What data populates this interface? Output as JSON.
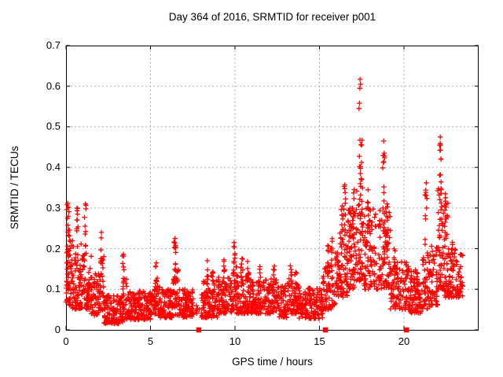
{
  "chart_data": {
    "type": "scatter",
    "title": "Day 364 of 2016, SRMTID for receiver p001",
    "xlabel": "GPS time / hours",
    "ylabel": "SRMTID / TECUs",
    "xlim": [
      0,
      24.42
    ],
    "ylim": [
      0,
      0.7
    ],
    "xticks": [
      0,
      5,
      10,
      15,
      20
    ],
    "yticks": [
      0,
      0.1,
      0.2,
      0.3,
      0.4,
      0.5,
      0.6,
      0.7
    ],
    "grid": true,
    "legend": "none",
    "marker": "plus",
    "marker_color": "#ff0000",
    "border_color": "#000000",
    "grid_color": "#b0b0b0",
    "zero_value_marker_hours": [
      7.86,
      15.35,
      20.15
    ],
    "peak_points": [
      [
        17.4,
        0.617
      ],
      [
        17.43,
        0.605
      ],
      [
        17.39,
        0.595
      ],
      [
        17.37,
        0.558
      ],
      [
        17.34,
        0.545
      ],
      [
        17.52,
        0.467
      ],
      [
        17.5,
        0.455
      ],
      [
        17.49,
        0.412
      ],
      [
        17.46,
        0.372
      ],
      [
        18.8,
        0.465
      ],
      [
        18.83,
        0.435
      ],
      [
        18.78,
        0.412
      ],
      [
        18.81,
        0.352
      ],
      [
        18.76,
        0.3
      ],
      [
        22.15,
        0.475
      ],
      [
        22.17,
        0.455
      ],
      [
        22.13,
        0.442
      ],
      [
        22.19,
        0.421
      ],
      [
        22.16,
        0.382
      ],
      [
        21.32,
        0.362
      ],
      [
        21.29,
        0.344
      ],
      [
        21.34,
        0.3
      ],
      [
        16.5,
        0.357
      ],
      [
        16.52,
        0.338
      ],
      [
        16.35,
        0.305
      ],
      [
        0.1,
        0.312
      ],
      [
        0.13,
        0.302
      ],
      [
        0.65,
        0.3
      ],
      [
        0.68,
        0.285
      ],
      [
        1.15,
        0.31
      ],
      [
        1.18,
        0.298
      ],
      [
        2.1,
        0.24
      ],
      [
        3.4,
        0.186
      ],
      [
        5.35,
        0.165
      ],
      [
        6.45,
        0.225
      ],
      [
        6.44,
        0.214
      ],
      [
        6.46,
        0.204
      ],
      [
        9.95,
        0.215
      ],
      [
        9.93,
        0.205
      ],
      [
        22.45,
        0.335
      ],
      [
        22.6,
        0.312
      ],
      [
        19.0,
        0.31
      ]
    ],
    "scatter_band_segments": [
      [
        0.0,
        0.3,
        0.06,
        0.24,
        40
      ],
      [
        0.05,
        0.25,
        0.1,
        0.31,
        15
      ],
      [
        0.3,
        0.9,
        0.05,
        0.22,
        70
      ],
      [
        0.9,
        1.5,
        0.05,
        0.19,
        65
      ],
      [
        1.5,
        2.05,
        0.035,
        0.14,
        60
      ],
      [
        2.05,
        2.25,
        0.04,
        0.2,
        20
      ],
      [
        2.25,
        3.35,
        0.015,
        0.085,
        115
      ],
      [
        3.35,
        3.6,
        0.025,
        0.13,
        25
      ],
      [
        3.6,
        5.15,
        0.025,
        0.095,
        160
      ],
      [
        5.15,
        5.6,
        0.03,
        0.12,
        48
      ],
      [
        5.6,
        6.3,
        0.03,
        0.1,
        72
      ],
      [
        6.3,
        6.65,
        0.035,
        0.15,
        38
      ],
      [
        6.65,
        7.55,
        0.03,
        0.1,
        90
      ],
      [
        7.55,
        8.0,
        0.04,
        0.07,
        6
      ],
      [
        8.0,
        9.0,
        0.03,
        0.125,
        105
      ],
      [
        9.0,
        9.85,
        0.04,
        0.13,
        90
      ],
      [
        9.85,
        10.1,
        0.05,
        0.16,
        25
      ],
      [
        10.1,
        11.0,
        0.04,
        0.135,
        95
      ],
      [
        11.0,
        12.0,
        0.04,
        0.125,
        100
      ],
      [
        12.0,
        12.6,
        0.04,
        0.13,
        62
      ],
      [
        12.6,
        13.1,
        0.03,
        0.11,
        52
      ],
      [
        13.1,
        13.8,
        0.04,
        0.13,
        72
      ],
      [
        13.8,
        15.2,
        0.028,
        0.105,
        140
      ],
      [
        15.2,
        15.85,
        0.05,
        0.16,
        66
      ],
      [
        15.85,
        16.2,
        0.06,
        0.19,
        38
      ],
      [
        16.2,
        16.65,
        0.08,
        0.27,
        55
      ],
      [
        16.65,
        17.1,
        0.1,
        0.3,
        55
      ],
      [
        17.1,
        17.6,
        0.12,
        0.37,
        60
      ],
      [
        17.6,
        18.3,
        0.1,
        0.3,
        75
      ],
      [
        18.3,
        19.2,
        0.1,
        0.3,
        95
      ],
      [
        19.2,
        20.3,
        0.05,
        0.17,
        110
      ],
      [
        20.3,
        21.1,
        0.04,
        0.15,
        85
      ],
      [
        21.1,
        21.6,
        0.05,
        0.19,
        55
      ],
      [
        21.6,
        22.0,
        0.06,
        0.21,
        45
      ],
      [
        22.0,
        22.3,
        0.1,
        0.35,
        45
      ],
      [
        22.3,
        22.6,
        0.08,
        0.31,
        40
      ],
      [
        22.6,
        23.1,
        0.08,
        0.225,
        55
      ],
      [
        23.1,
        23.5,
        0.08,
        0.205,
        40
      ]
    ],
    "scatter_columns": [
      [
        0.1,
        0.22,
        0.31,
        6
      ],
      [
        0.65,
        0.2,
        0.3,
        7
      ],
      [
        1.15,
        0.18,
        0.31,
        8
      ],
      [
        2.1,
        0.13,
        0.24,
        7
      ],
      [
        3.4,
        0.1,
        0.185,
        6
      ],
      [
        4.35,
        0.07,
        0.125,
        5
      ],
      [
        5.35,
        0.1,
        0.165,
        6
      ],
      [
        6.45,
        0.12,
        0.225,
        9
      ],
      [
        8.4,
        0.11,
        0.175,
        7
      ],
      [
        8.65,
        0.1,
        0.155,
        6
      ],
      [
        9.4,
        0.11,
        0.19,
        6
      ],
      [
        9.95,
        0.13,
        0.215,
        10
      ],
      [
        10.4,
        0.12,
        0.19,
        7
      ],
      [
        10.8,
        0.12,
        0.175,
        6
      ],
      [
        11.5,
        0.11,
        0.16,
        5
      ],
      [
        12.3,
        0.11,
        0.17,
        6
      ],
      [
        13.3,
        0.11,
        0.17,
        6
      ],
      [
        13.6,
        0.1,
        0.155,
        5
      ],
      [
        15.5,
        0.13,
        0.21,
        7
      ],
      [
        15.72,
        0.14,
        0.23,
        7
      ],
      [
        16.35,
        0.2,
        0.305,
        8
      ],
      [
        16.5,
        0.22,
        0.36,
        9
      ],
      [
        16.8,
        0.22,
        0.335,
        8
      ],
      [
        17.0,
        0.24,
        0.35,
        8
      ],
      [
        17.4,
        0.3,
        0.47,
        10
      ],
      [
        17.9,
        0.22,
        0.345,
        8
      ],
      [
        18.8,
        0.25,
        0.43,
        10
      ],
      [
        19.0,
        0.2,
        0.31,
        7
      ],
      [
        19.45,
        0.12,
        0.21,
        6
      ],
      [
        20.8,
        0.09,
        0.16,
        5
      ],
      [
        21.3,
        0.2,
        0.36,
        8
      ],
      [
        22.15,
        0.25,
        0.46,
        10
      ],
      [
        22.45,
        0.2,
        0.335,
        8
      ]
    ]
  }
}
